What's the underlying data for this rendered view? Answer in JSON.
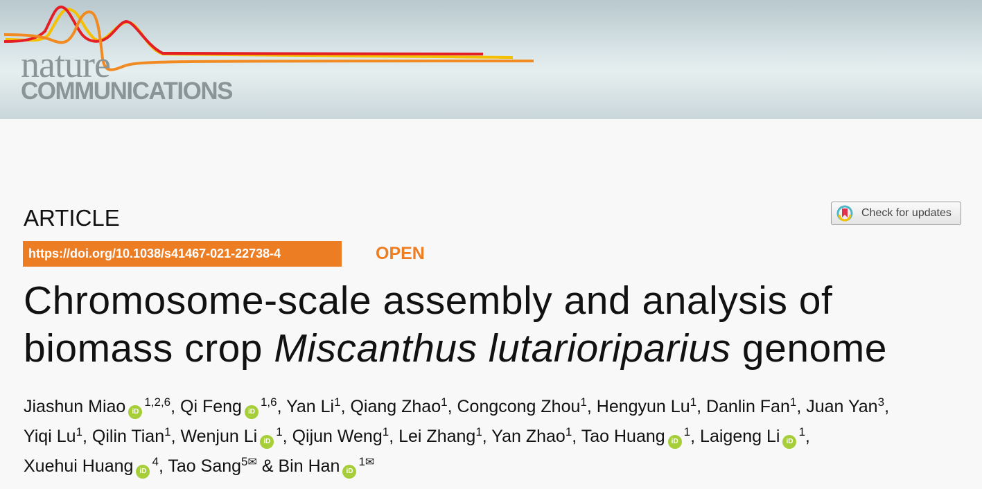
{
  "header": {
    "logo_line1": "nature",
    "logo_line2": "COMMUNICATIONS"
  },
  "article_type": "ARTICLE",
  "check_updates_label": "Check for updates",
  "doi": "https://doi.org/10.1038/s41467-021-22738-4",
  "access": "OPEN",
  "title": {
    "line1": "Chromosome-scale assembly and analysis of",
    "line2_pre": "biomass crop ",
    "line2_italic": "Miscanthus lutarioriparius",
    "line2_post": " genome"
  },
  "authors": [
    [
      {
        "name": "Jiashun Miao",
        "orcid": true,
        "aff": "1,2,6",
        "sep": ", "
      },
      {
        "name": "Qi Feng",
        "orcid": true,
        "aff": "1,6",
        "sep": ", "
      },
      {
        "name": "Yan Li",
        "aff": "1",
        "sep": ", "
      },
      {
        "name": "Qiang Zhao",
        "aff": "1",
        "sep": ", "
      },
      {
        "name": "Congcong Zhou",
        "aff": "1",
        "sep": ", "
      },
      {
        "name": "Hengyun Lu",
        "aff": "1",
        "sep": ", "
      },
      {
        "name": "Danlin Fan",
        "aff": "1",
        "sep": ", "
      },
      {
        "name": "Juan Yan",
        "aff": "3",
        "sep": ","
      }
    ],
    [
      {
        "name": "Yiqi Lu",
        "aff": "1",
        "sep": ", "
      },
      {
        "name": "Qilin Tian",
        "aff": "1",
        "sep": ", "
      },
      {
        "name": "Wenjun Li",
        "orcid": true,
        "aff": "1",
        "sep": ", "
      },
      {
        "name": "Qijun Weng",
        "aff": "1",
        "sep": ", "
      },
      {
        "name": "Lei Zhang",
        "aff": "1",
        "sep": ", "
      },
      {
        "name": "Yan Zhao",
        "aff": "1",
        "sep": ", "
      },
      {
        "name": "Tao Huang",
        "orcid": true,
        "aff": "1",
        "sep": ", "
      },
      {
        "name": "Laigeng Li",
        "orcid": true,
        "aff": "1",
        "sep": ","
      }
    ],
    [
      {
        "name": "Xuehui Huang",
        "orcid": true,
        "aff": "4",
        "sep": ", "
      },
      {
        "name": "Tao Sang",
        "aff": "5",
        "email": true,
        "sep": " & "
      },
      {
        "name": "Bin Han",
        "orcid": true,
        "aff": "1",
        "email": true,
        "sep": ""
      }
    ]
  ],
  "orcid_label": "iD",
  "email_glyph": "✉",
  "colors": {
    "accent": "#ed7d23",
    "orcid": "#a6ce39"
  }
}
